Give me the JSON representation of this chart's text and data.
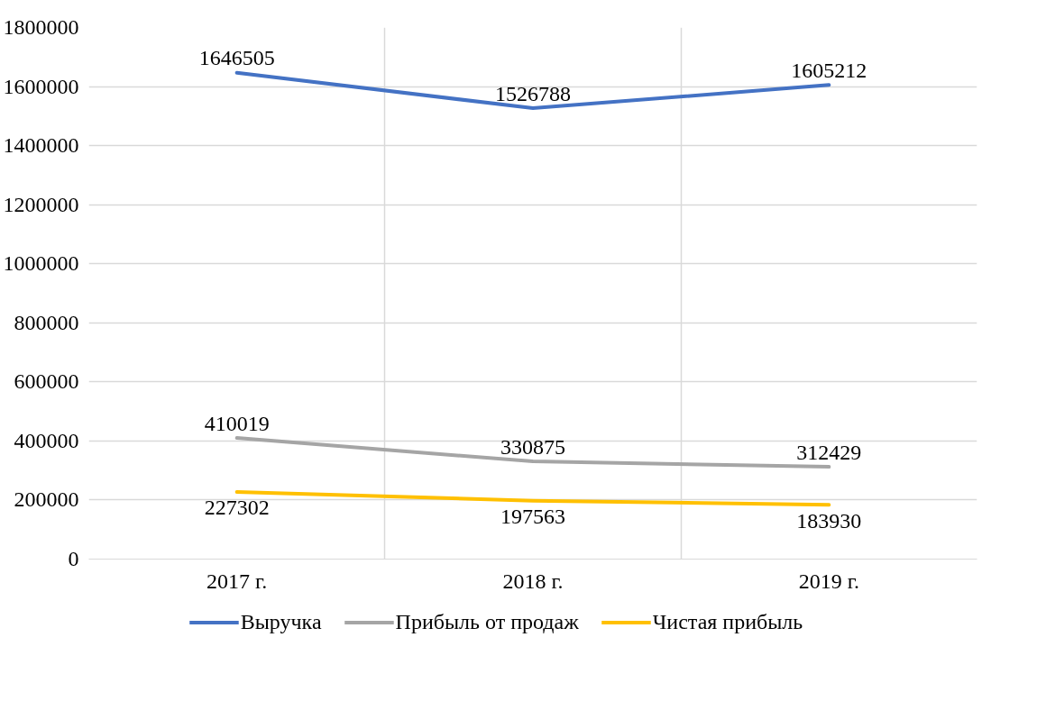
{
  "chart_data": {
    "type": "line",
    "categories": [
      "2017 г.",
      "2018 г.",
      "2019 г."
    ],
    "series": [
      {
        "name": "Выручка",
        "color": "#4472c4",
        "values": [
          1646505,
          1526788,
          1605212
        ]
      },
      {
        "name": "Прибыль от продаж",
        "color": "#a5a5a5",
        "values": [
          410019,
          330875,
          312429
        ]
      },
      {
        "name": "Чистая прибыль",
        "color": "#ffc000",
        "values": [
          227302,
          197563,
          183930
        ]
      }
    ],
    "ylim": [
      0,
      1800000
    ],
    "yticks": [
      0,
      200000,
      400000,
      600000,
      800000,
      1000000,
      1200000,
      1400000,
      1600000,
      1800000
    ],
    "grid": true,
    "legend": "bottom",
    "data_labels": true,
    "marker": "none",
    "line_style": "solid"
  }
}
